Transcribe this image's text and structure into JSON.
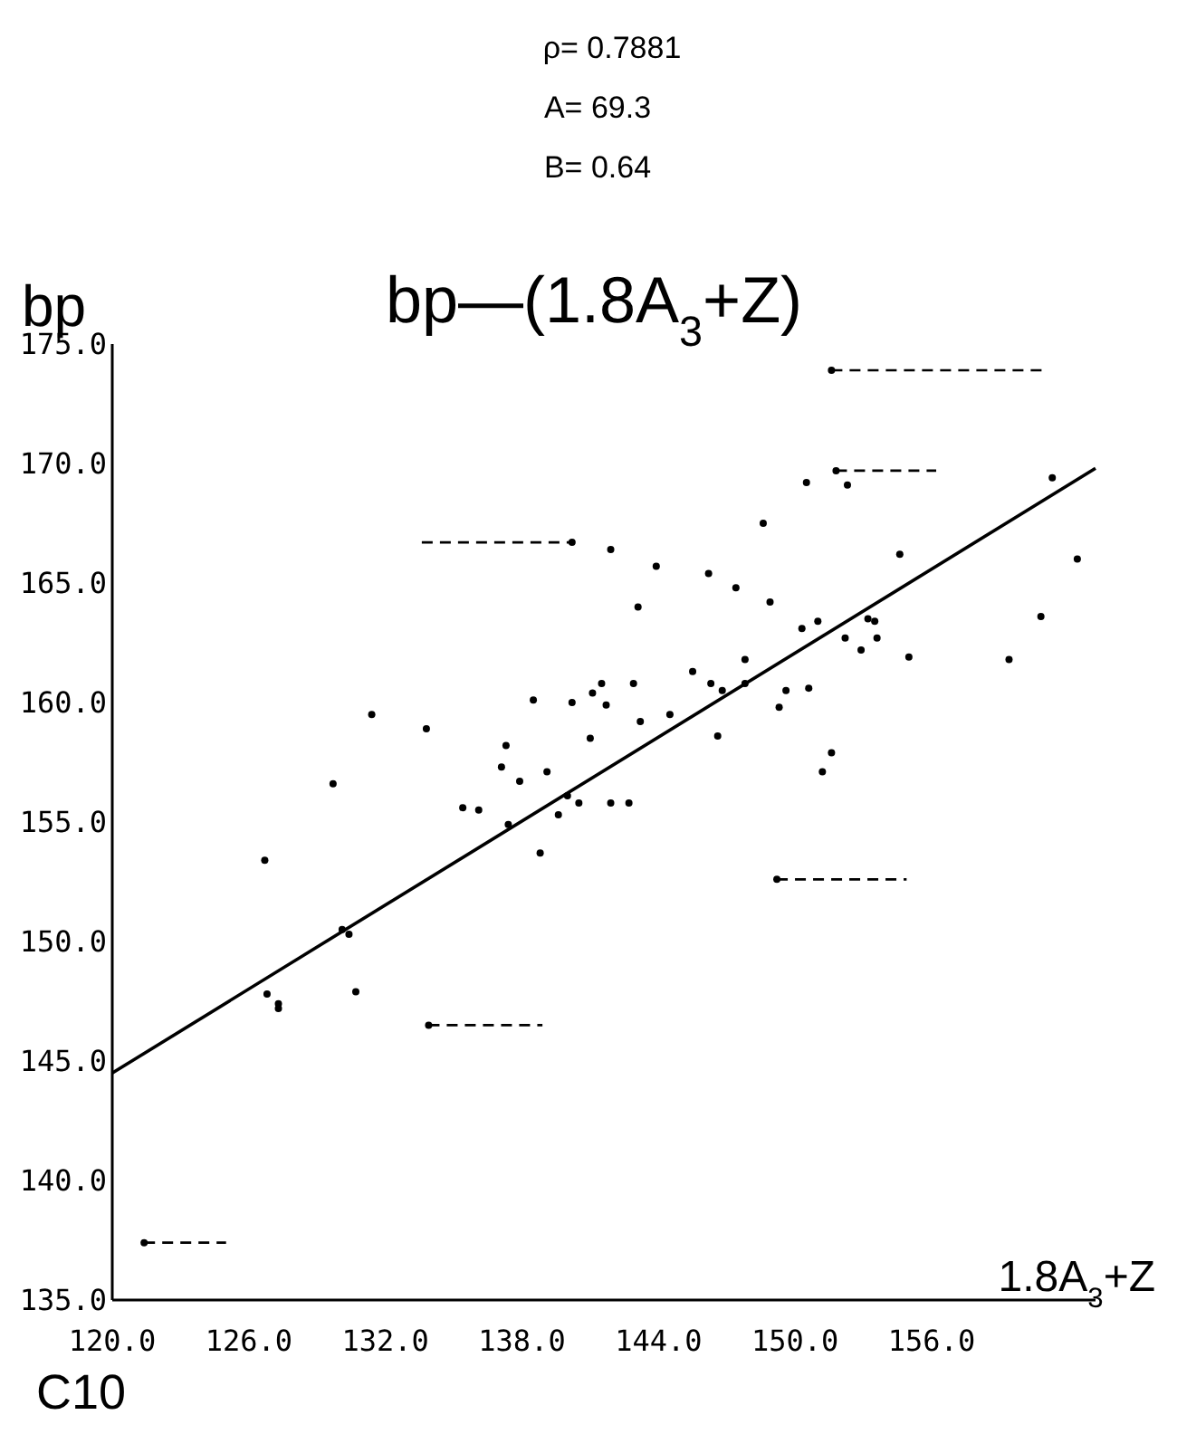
{
  "chart_data": {
    "type": "scatter",
    "title": "bp—(1.8A$_{3}$+Z)",
    "xlabel": "1.8A$_{3}$+Z",
    "ylabel": "bp",
    "annotations": [
      "ρ= 0.7881",
      "A= 69.3",
      "B= 0.64",
      "C10"
    ],
    "xlim": [
      120,
      163.2
    ],
    "xticks": [
      {
        "value": 120,
        "label": "120.0"
      },
      {
        "value": 126,
        "label": "126.0"
      },
      {
        "value": 132,
        "label": "132.0"
      },
      {
        "value": 138,
        "label": "138.0"
      },
      {
        "value": 144,
        "label": "144.0"
      },
      {
        "value": 150,
        "label": "150.0"
      },
      {
        "value": 156,
        "label": "156.0"
      }
    ],
    "ylim": [
      135,
      175
    ],
    "yticks": [
      {
        "value": 135,
        "label": "135.0"
      },
      {
        "value": 140,
        "label": "140.0"
      },
      {
        "value": 145,
        "label": "145.0"
      },
      {
        "value": 150,
        "label": "150.0"
      },
      {
        "value": 155,
        "label": "155.0"
      },
      {
        "value": 160,
        "label": "160.0"
      },
      {
        "value": 165,
        "label": "165.0"
      },
      {
        "value": 170,
        "label": "170.0"
      },
      {
        "value": 175,
        "label": "175.0"
      }
    ],
    "grid": false,
    "marker": "circle",
    "series": [
      {
        "color": "#000000",
        "x": [
          131.4,
          133.8,
          137.3,
          138.5,
          140.2,
          141.5,
          141.1,
          141.7,
          142.9,
          141.0,
          141.9,
          143.1,
          150.5,
          152.3,
          148.6,
          154.6,
          161.3,
          162.4,
          143.9,
          146.2,
          147.4,
          148.9,
          153.2,
          153.5,
          152.2,
          152.9,
          153.6,
          155.0,
          160.8,
          159.4,
          150.3,
          151.0,
          147.8,
          145.5,
          146.3,
          146.8,
          147.8,
          149.6,
          150.6,
          149.3,
          143.2,
          144.5,
          146.6,
          151.6,
          151.2,
          137.1,
          137.9,
          139.1,
          129.7,
          135.4,
          136.1,
          137.4,
          138.8,
          139.6,
          140.0,
          140.5,
          141.9,
          142.7,
          126.7,
          130.1,
          130.4,
          126.8,
          127.3,
          127.3,
          130.7
        ],
        "values": [
          159.5,
          158.9,
          158.2,
          160.1,
          160.0,
          160.8,
          160.4,
          159.9,
          160.8,
          158.5,
          166.4,
          164.0,
          169.2,
          169.1,
          167.5,
          166.2,
          169.4,
          166.0,
          165.7,
          165.4,
          164.8,
          164.2,
          163.5,
          163.4,
          162.7,
          162.2,
          162.7,
          161.9,
          163.6,
          161.8,
          163.1,
          163.4,
          161.8,
          161.3,
          160.8,
          160.5,
          160.8,
          160.5,
          160.6,
          159.8,
          159.2,
          159.5,
          158.6,
          157.9,
          157.1,
          157.3,
          156.7,
          157.1,
          156.6,
          155.6,
          155.5,
          154.9,
          153.7,
          155.3,
          156.1,
          155.8,
          155.8,
          155.8,
          153.4,
          150.5,
          150.3,
          147.8,
          147.4,
          147.2,
          147.9
        ]
      },
      {
        "color": "#000000",
        "x": [
          140.2,
          151.6,
          151.8,
          133.9,
          149.2,
          121.4
        ],
        "values": [
          166.7,
          173.9,
          169.7,
          146.5,
          152.6,
          137.4
        ],
        "xerrors": [
          [
            133.6,
            140.2
          ],
          [
            151.6,
            160.9
          ],
          [
            151.8,
            156.2
          ],
          [
            133.9,
            138.9
          ],
          [
            149.2,
            154.9
          ],
          [
            121.4,
            125.0
          ]
        ],
        "line_style": "dashed"
      },
      {
        "type": "line",
        "color": "#000000",
        "x": [
          120,
          163.2
        ],
        "values": [
          144.5,
          169.8
        ],
        "marker": "none",
        "line_style": "solid"
      }
    ]
  }
}
